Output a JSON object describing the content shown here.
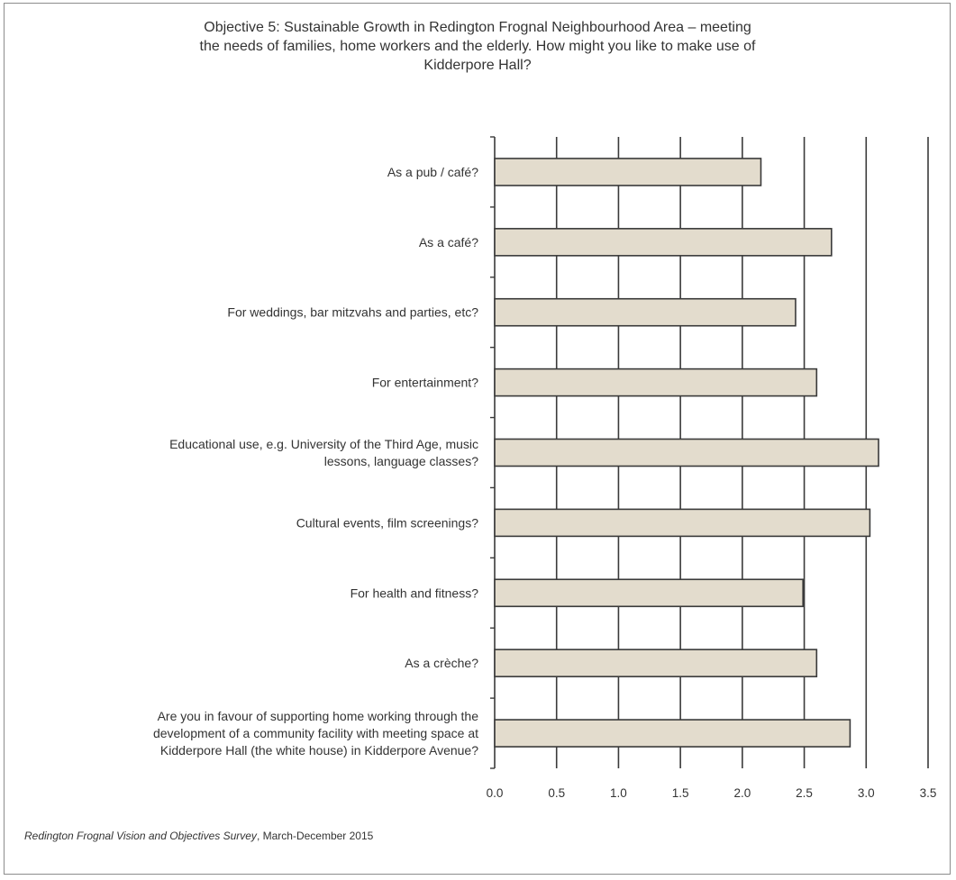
{
  "colors": {
    "bar_fill": "#e3dccd",
    "bar_stroke": "#3a3a3a",
    "grid": "#3a3a3a",
    "frame": "#8c8c8c",
    "text": "#333333"
  },
  "chart_data": {
    "type": "bar",
    "orientation": "horizontal",
    "title_lines": [
      "Objective 5: Sustainable Growth in Redington Frognal Neighbourhood Area – meeting",
      "the needs of families, home workers and the elderly.    How might you like to make use of",
      "Kidderpore Hall?"
    ],
    "categories": [
      [
        "As a pub / café?"
      ],
      [
        "As a café?"
      ],
      [
        "For weddings, bar mitzvahs and parties, etc?"
      ],
      [
        "For entertainment?"
      ],
      [
        "Educational use, e.g. University of the Third Age, music",
        "lessons, language classes?"
      ],
      [
        "Cultural events, film screenings?"
      ],
      [
        "For health and fitness?"
      ],
      [
        "As a crèche?"
      ],
      [
        "Are you in favour of supporting home working through the",
        "development of a community facility with meeting space at",
        "Kidderpore Hall (the white house) in Kidderpore Avenue?"
      ]
    ],
    "values": [
      2.15,
      2.72,
      2.43,
      2.6,
      3.1,
      3.03,
      2.49,
      2.6,
      2.87
    ],
    "xlim": [
      0,
      3.5
    ],
    "xticks": [
      "0.0",
      "0.5",
      "1.0",
      "1.5",
      "2.0",
      "2.5",
      "3.0",
      "3.5"
    ],
    "grid": "vertical",
    "xlabel": "",
    "ylabel": ""
  },
  "source": {
    "italic": "Redington Frognal Vision and Objectives Survey",
    "rest": ", March-December 2015"
  }
}
